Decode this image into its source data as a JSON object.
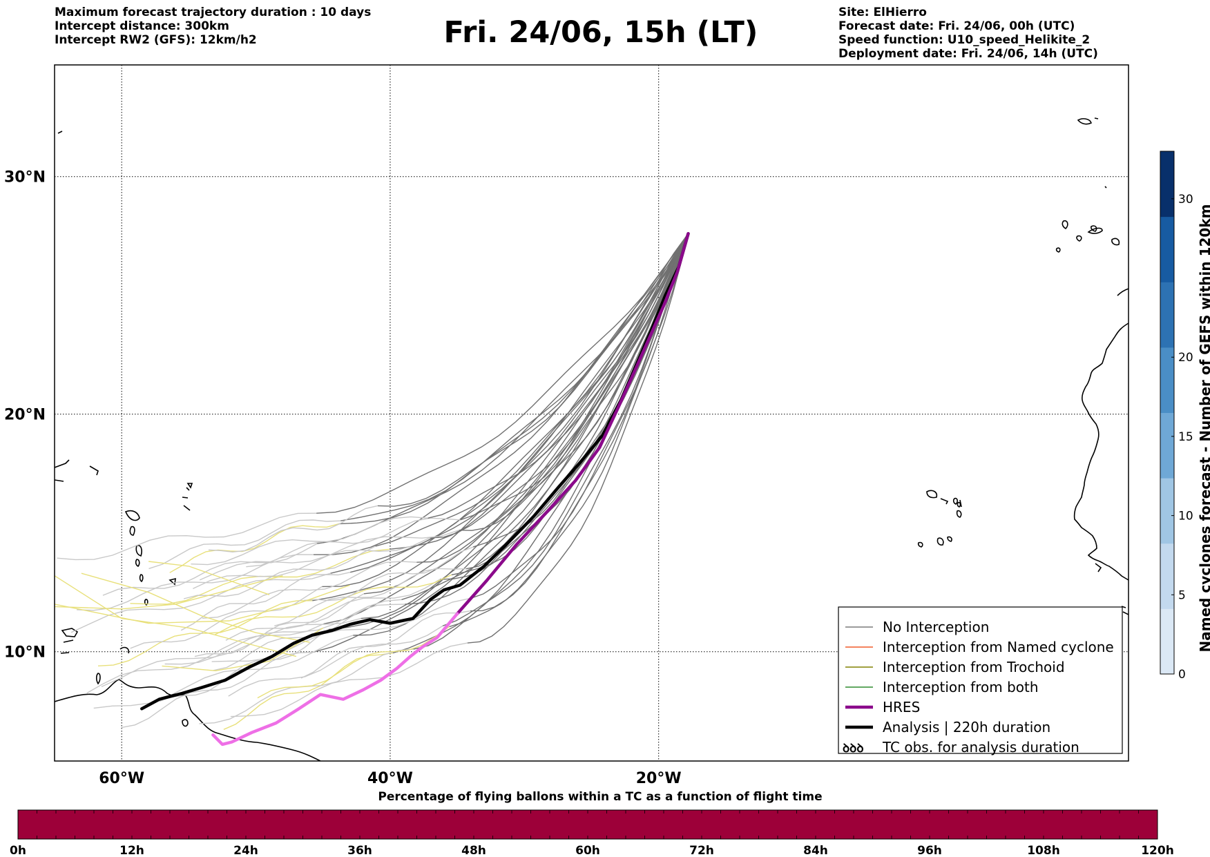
{
  "header": {
    "left": [
      "Maximum forecast trajectory duration : 10 days",
      "Intercept distance: 300km",
      "Intercept RW2 (GFS):  12km/h2"
    ],
    "title": "Fri. 24/06, 15h (LT)",
    "right": [
      "Site: ElHierro",
      "Forecast date: Fri. 24/06, 00h (UTC)",
      "Speed function: U10_speed_Helikite_2",
      "Deployment date: Fri. 24/06, 14h (UTC)"
    ]
  },
  "map": {
    "lon_range": [
      -65,
      15
    ],
    "lat_range": [
      5.4,
      34.7
    ],
    "lon_ticks": [
      -60,
      -40,
      -20
    ],
    "lon_labels": [
      "60°W",
      "40°W",
      "20°W"
    ],
    "lat_ticks": [
      10,
      20,
      30
    ],
    "lat_labels": [
      "10°N",
      "20°N",
      "30°N"
    ],
    "grid": "dotted"
  },
  "colorbar": {
    "label": "Named cyclones forecast - Number of GEFS within 120km",
    "ticks": [
      "0",
      "5",
      "10",
      "15",
      "20",
      "30"
    ],
    "colors": [
      "#dbe8f5",
      "#c3d9ee",
      "#a0c6e4",
      "#6fa8d6",
      "#4a8ec6",
      "#2d72b3",
      "#175ba2",
      "#08306b"
    ]
  },
  "timebar": {
    "title": "Percentage of flying ballons within a TC as a function of flight time",
    "ticks": [
      "0h",
      "12h",
      "24h",
      "36h",
      "48h",
      "60h",
      "72h",
      "84h",
      "96h",
      "108h",
      "120h"
    ],
    "color": "#9d0039"
  },
  "legend": {
    "items": [
      {
        "label": "No Interception",
        "color": "#7a7a7a",
        "style": "thin"
      },
      {
        "label": "Interception from Named cyclone",
        "color": "#f05a28",
        "style": "thin"
      },
      {
        "label": "Interception from Trochoid",
        "color": "#808000",
        "style": "thin"
      },
      {
        "label": "Interception from both",
        "color": "#2e8b2e",
        "style": "thin"
      },
      {
        "label": "HRES",
        "color": "#8b0a8b",
        "style": "thick"
      },
      {
        "label": "Analysis | 220h duration",
        "color": "#000000",
        "style": "thick"
      },
      {
        "label": "TC obs. for analysis duration",
        "color": "#000000",
        "style": "glyph",
        "glyph": "ꝺꝺꝺ"
      }
    ]
  },
  "chart_data": {
    "type": "line",
    "x_axis": "longitude",
    "y_axis": "latitude",
    "series": [
      {
        "name": "Analysis | 220h duration",
        "color": "#000000",
        "x": [
          -17.8,
          -18.5,
          -19.5,
          -20.5,
          -21.5,
          -22.8,
          -24.2,
          -25.8,
          -27.5,
          -29.3,
          -31.2,
          -33.0,
          -34.8,
          -36.0,
          -37.0,
          -38.3,
          -40.0,
          -41.5,
          -43.0,
          -44.3,
          -45.8,
          -47.2,
          -48.8,
          -50.5,
          -52.3,
          -54.0,
          -55.5,
          -57.2,
          -58.5
        ],
        "y": [
          27.6,
          26.2,
          25.0,
          23.6,
          22.3,
          20.6,
          19.1,
          18.0,
          16.9,
          15.7,
          14.6,
          13.6,
          12.8,
          12.6,
          12.2,
          11.4,
          11.2,
          11.35,
          11.15,
          10.9,
          10.7,
          10.35,
          9.8,
          9.35,
          8.8,
          8.5,
          8.25,
          8.0,
          7.6
        ]
      },
      {
        "name": "HRES",
        "color": "#8b0a8b",
        "x": [
          -17.8,
          -18.6,
          -19.6,
          -20.7,
          -21.8,
          -23.0,
          -24.4,
          -26.2,
          -28.3,
          -30.6,
          -32.8,
          -35.0
        ],
        "y": [
          27.6,
          26.0,
          24.6,
          23.2,
          21.8,
          20.3,
          18.6,
          17.2,
          15.9,
          14.5,
          13.0,
          11.6
        ]
      },
      {
        "name": "HRES",
        "color": "#ee6fe6",
        "x": [
          -35.0,
          -36.5,
          -37.6,
          -38.5,
          -39.5,
          -40.7,
          -42.0,
          -43.5,
          -45.2,
          -46.8,
          -48.5,
          -50.3,
          -51.8,
          -52.5,
          -53.2
        ],
        "y": [
          11.6,
          10.6,
          10.2,
          9.8,
          9.3,
          8.8,
          8.4,
          8.0,
          8.2,
          7.6,
          7.0,
          6.6,
          6.2,
          6.1,
          6.5
        ]
      }
    ]
  }
}
